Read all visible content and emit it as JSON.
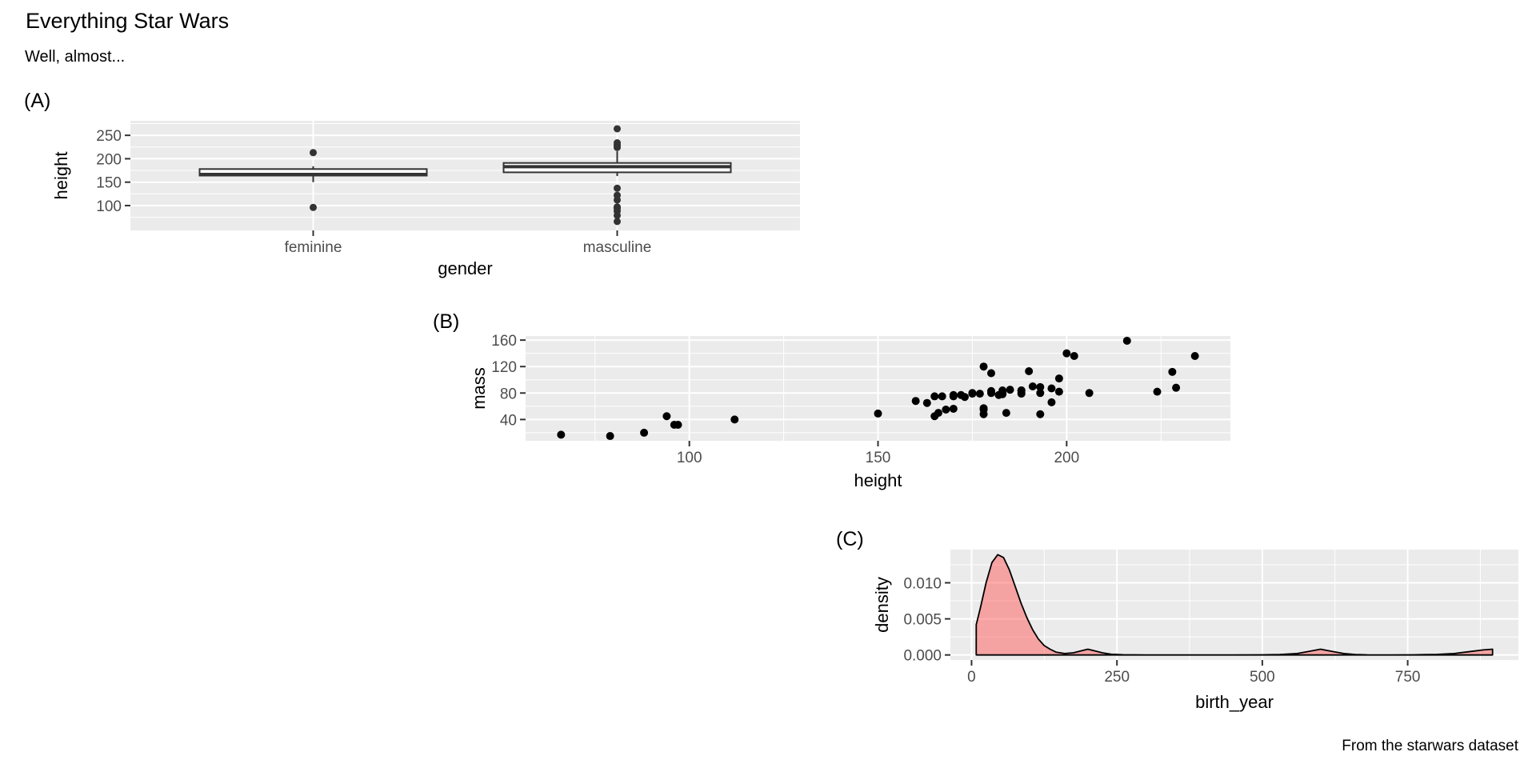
{
  "header": {
    "title": "Everything Star Wars",
    "subtitle": "Well, almost..."
  },
  "caption": "From the starwars dataset",
  "colors": {
    "panel_bg": "#EBEBEB",
    "grid_major": "#FFFFFF",
    "grid_minor": "#FFFFFF",
    "axis_text": "#4D4D4D",
    "axis_title": "#000000",
    "tick_mark": "#333333",
    "box_border": "#333333",
    "box_fill": "#FFFFFF",
    "point": "#000000",
    "density_fill": "rgba(255,73,73,0.45)",
    "density_line": "#000000"
  },
  "chart_data": [
    {
      "id": "A",
      "type": "boxplot",
      "tag": "(A)",
      "xlabel": "gender",
      "ylabel": "height",
      "categories": [
        "feminine",
        "masculine"
      ],
      "x_tick_labels": [
        "feminine",
        "masculine"
      ],
      "y_ticks": [
        100,
        150,
        200,
        250
      ],
      "y_minor": [
        75,
        125,
        175,
        225,
        275
      ],
      "ylim": [
        47,
        281
      ],
      "boxes": [
        {
          "category": "feminine",
          "q1": 164,
          "median": 166.5,
          "q3": 178,
          "whisker_low": 150,
          "whisker_high": 184,
          "outliers": [
            96,
            213
          ]
        },
        {
          "category": "masculine",
          "q1": 171,
          "median": 183,
          "q3": 191,
          "whisker_low": 163,
          "whisker_high": 216,
          "outliers": [
            66,
            79,
            88,
            94,
            96,
            97,
            112,
            122,
            137,
            224,
            228,
            229,
            234,
            264
          ]
        }
      ]
    },
    {
      "id": "B",
      "type": "scatter",
      "tag": "(B)",
      "xlabel": "height",
      "ylabel": "mass",
      "x_ticks": [
        100,
        150,
        200
      ],
      "x_minor": [
        75,
        125,
        175,
        225
      ],
      "xlim": [
        56.6,
        243.4
      ],
      "y_ticks": [
        40,
        80,
        120,
        160
      ],
      "y_minor": [
        20,
        60,
        100,
        140
      ],
      "ylim": [
        7.8,
        166.2
      ],
      "points": [
        [
          172,
          77
        ],
        [
          167,
          75
        ],
        [
          96,
          32
        ],
        [
          202,
          136
        ],
        [
          150,
          49
        ],
        [
          178,
          120
        ],
        [
          165,
          75
        ],
        [
          97,
          32
        ],
        [
          183,
          84
        ],
        [
          182,
          77
        ],
        [
          188,
          84
        ],
        [
          228,
          112
        ],
        [
          180,
          80
        ],
        [
          173,
          74
        ],
        [
          170,
          77
        ],
        [
          180,
          110
        ],
        [
          66,
          17
        ],
        [
          170,
          75
        ],
        [
          183,
          78.2
        ],
        [
          200,
          140
        ],
        [
          190,
          113
        ],
        [
          177,
          79
        ],
        [
          175,
          79
        ],
        [
          180,
          83
        ],
        [
          88,
          20
        ],
        [
          160,
          68
        ],
        [
          193,
          89
        ],
        [
          191,
          90
        ],
        [
          196,
          66
        ],
        [
          224,
          82
        ],
        [
          112,
          40
        ],
        [
          175,
          80
        ],
        [
          178,
          55
        ],
        [
          94,
          45
        ],
        [
          163,
          65
        ],
        [
          188,
          84
        ],
        [
          198,
          82
        ],
        [
          196,
          87
        ],
        [
          184,
          50
        ],
        [
          188,
          80
        ],
        [
          185,
          85
        ],
        [
          183,
          80
        ],
        [
          170,
          56.2
        ],
        [
          166,
          50
        ],
        [
          193,
          80
        ],
        [
          183,
          79
        ],
        [
          168,
          55
        ],
        [
          198,
          102
        ],
        [
          229,
          88
        ],
        [
          79,
          15
        ],
        [
          193,
          48
        ],
        [
          178,
          57
        ],
        [
          216,
          159
        ],
        [
          234,
          136
        ],
        [
          188,
          79
        ],
        [
          178,
          48
        ],
        [
          206,
          80
        ],
        [
          165,
          45
        ]
      ]
    },
    {
      "id": "C",
      "type": "density",
      "tag": "(C)",
      "xlabel": "birth_year",
      "ylabel": "density",
      "x_ticks": [
        0,
        250,
        500,
        750
      ],
      "x_minor": [
        125,
        375,
        625,
        875
      ],
      "xlim": [
        -36.4,
        940.4
      ],
      "y_ticks": [
        0,
        0.005,
        0.01
      ],
      "y_tick_labels": [
        "0.000",
        "0.005",
        "0.010"
      ],
      "y_minor": [
        0.0025,
        0.0075,
        0.0125
      ],
      "ylim": [
        -0.0007,
        0.0146
      ],
      "curve": [
        [
          8,
          0.0042
        ],
        [
          15,
          0.0065
        ],
        [
          25,
          0.01
        ],
        [
          35,
          0.0128
        ],
        [
          45,
          0.0139
        ],
        [
          55,
          0.0135
        ],
        [
          65,
          0.0118
        ],
        [
          75,
          0.0095
        ],
        [
          85,
          0.0072
        ],
        [
          95,
          0.0052
        ],
        [
          105,
          0.0035
        ],
        [
          115,
          0.0022
        ],
        [
          125,
          0.0013
        ],
        [
          135,
          0.0008
        ],
        [
          145,
          0.0004
        ],
        [
          160,
          0.0002
        ],
        [
          175,
          0.0003
        ],
        [
          190,
          0.0006
        ],
        [
          200,
          0.0008
        ],
        [
          210,
          0.0006
        ],
        [
          225,
          0.0003
        ],
        [
          240,
          0.0001
        ],
        [
          260,
          3e-05
        ],
        [
          300,
          1e-05
        ],
        [
          350,
          1e-05
        ],
        [
          400,
          1e-05
        ],
        [
          450,
          1e-05
        ],
        [
          500,
          2e-05
        ],
        [
          530,
          5e-05
        ],
        [
          560,
          0.0002
        ],
        [
          580,
          0.0005
        ],
        [
          600,
          0.0008
        ],
        [
          620,
          0.0005
        ],
        [
          640,
          0.0002
        ],
        [
          660,
          6e-05
        ],
        [
          680,
          2e-05
        ],
        [
          720,
          1e-05
        ],
        [
          760,
          2e-05
        ],
        [
          800,
          8e-05
        ],
        [
          830,
          0.0002
        ],
        [
          860,
          0.0005
        ],
        [
          880,
          0.0007
        ],
        [
          896,
          0.0008
        ]
      ]
    }
  ]
}
